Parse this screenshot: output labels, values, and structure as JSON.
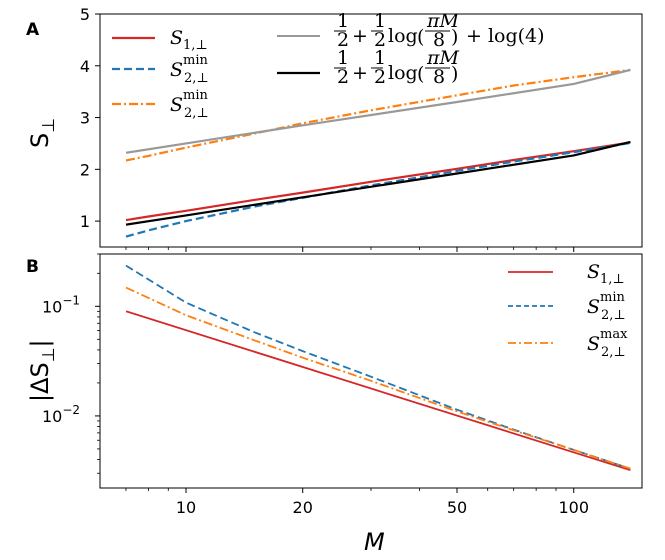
{
  "chart_data": [
    {
      "panel": "A",
      "type": "line",
      "ylabel": "S",
      "ylabel_sub": "⊥",
      "xscale": "log",
      "yscale": "linear",
      "xlim": [
        6,
        150
      ],
      "ylim": [
        0.5,
        5.0
      ],
      "yticks": [
        1,
        2,
        3,
        4,
        5
      ],
      "ytick_labels": [
        "1",
        "2",
        "3",
        "4",
        "5"
      ],
      "grid": false,
      "legend_placement": "top-left, two columns",
      "series": [
        {
          "name": "S₁,⊥",
          "color": "#d62728",
          "dash": "solid",
          "x": [
            7,
            8,
            10,
            15,
            20,
            30,
            50,
            70,
            100,
            140
          ],
          "y": [
            1.02,
            1.09,
            1.2,
            1.41,
            1.55,
            1.76,
            2.01,
            2.18,
            2.35,
            2.52
          ]
        },
        {
          "name": "S₂,⊥ min",
          "color": "#1f77b4",
          "dash": "dashed",
          "x": [
            7,
            8,
            10,
            15,
            20,
            30,
            50,
            70,
            100,
            140
          ],
          "y": [
            0.7,
            0.82,
            1.0,
            1.28,
            1.45,
            1.69,
            1.97,
            2.15,
            2.33,
            2.51
          ]
        },
        {
          "name": "S₂,⊥ min",
          "color": "#ff7f0e",
          "dash": "dashdot",
          "x": [
            7,
            8,
            10,
            15,
            20,
            30,
            50,
            70,
            100,
            140
          ],
          "y": [
            2.17,
            2.26,
            2.42,
            2.69,
            2.89,
            3.14,
            3.43,
            3.62,
            3.78,
            3.92
          ]
        },
        {
          "name": "1/2 + 1/2 log(πM/8) + log(4)",
          "color": "#999999",
          "dash": "solid",
          "x": [
            7,
            10,
            20,
            50,
            100,
            140
          ],
          "y": [
            2.32,
            2.5,
            2.85,
            3.3,
            3.65,
            3.92
          ]
        },
        {
          "name": "1/2 + 1/2 log(πM/8)",
          "color": "#000000",
          "dash": "solid",
          "x": [
            7,
            10,
            20,
            50,
            100,
            140
          ],
          "y": [
            0.93,
            1.11,
            1.46,
            1.92,
            2.27,
            2.53
          ]
        }
      ],
      "legend": {
        "left": [
          {
            "base": "S",
            "sub": "1,⊥",
            "sup": ""
          },
          {
            "base": "S",
            "sub": "2,⊥",
            "sup": "min"
          },
          {
            "base": "S",
            "sub": "2,⊥",
            "sup": "min"
          }
        ],
        "right": [
          {
            "half": "1",
            "over": "2",
            "plus": "+",
            "log": "log",
            "pi": "πM",
            "eight": "8",
            "extra": "+ log(4)"
          },
          {
            "half": "1",
            "over": "2",
            "plus": "+",
            "log": "log",
            "pi": "πM",
            "eight": "8",
            "extra": ""
          }
        ]
      }
    },
    {
      "panel": "B",
      "type": "line",
      "ylabel": "|ΔS",
      "ylabel_sub": "⊥",
      "ylabel_end": "|",
      "xlabel": "M",
      "xscale": "log",
      "yscale": "log",
      "xlim": [
        6,
        150
      ],
      "ylim": [
        0.0022,
        0.3
      ],
      "xticks": [
        10,
        20,
        50,
        100
      ],
      "xtick_labels": [
        "10",
        "20",
        "50",
        "100"
      ],
      "yticks": [
        0.1,
        0.01
      ],
      "ytick_labels": [
        {
          "base": "10",
          "exp": "−1"
        },
        {
          "base": "10",
          "exp": "−2"
        }
      ],
      "grid": false,
      "legend_placement": "top-right",
      "series": [
        {
          "name": "S₁,⊥",
          "color": "#d62728",
          "dash": "solid",
          "x": [
            7,
            140
          ],
          "y": [
            0.09,
            0.0032
          ]
        },
        {
          "name": "S₂,⊥ min",
          "color": "#1f77b4",
          "dash": "dashed",
          "x": [
            7,
            10,
            15,
            20,
            30,
            50,
            70,
            100,
            140
          ],
          "y": [
            0.235,
            0.108,
            0.058,
            0.039,
            0.0228,
            0.0114,
            0.0075,
            0.0049,
            0.0033
          ]
        },
        {
          "name": "S₂,⊥ max",
          "color": "#ff7f0e",
          "dash": "dashdot",
          "x": [
            7,
            10,
            15,
            20,
            30,
            50,
            70,
            100,
            140
          ],
          "y": [
            0.148,
            0.083,
            0.049,
            0.034,
            0.0209,
            0.011,
            0.0074,
            0.0049,
            0.0033
          ]
        }
      ],
      "legend": [
        {
          "base": "S",
          "sub": "1,⊥",
          "sup": ""
        },
        {
          "base": "S",
          "sub": "2,⊥",
          "sup": "min"
        },
        {
          "base": "S",
          "sub": "2,⊥",
          "sup": "max"
        }
      ]
    }
  ]
}
